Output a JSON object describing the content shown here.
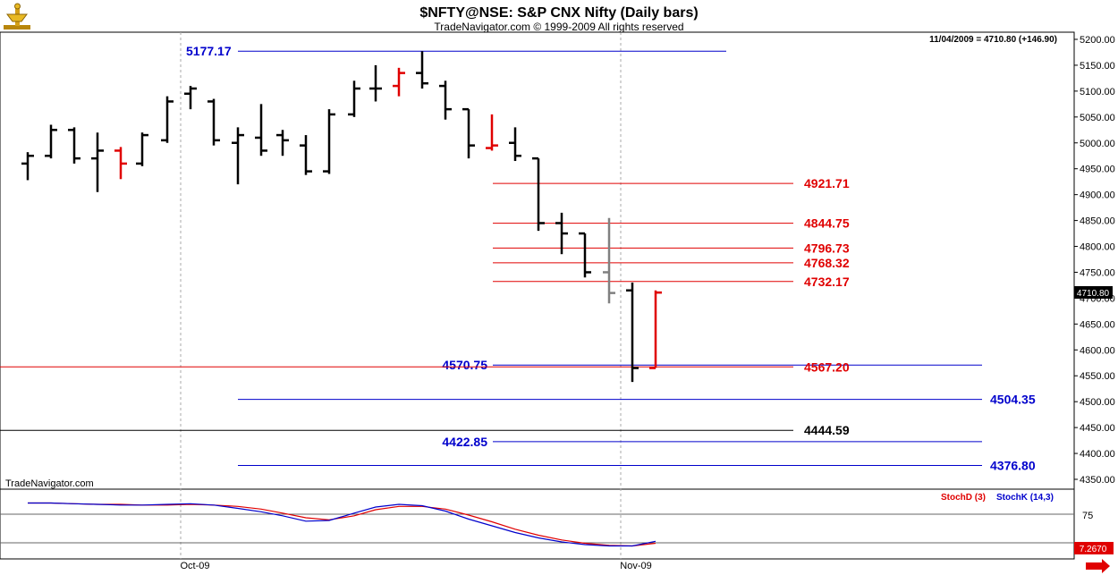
{
  "header": {
    "title": "$NFTY@NSE:  S&P CNX Nifty  (Daily bars)",
    "subtitle": "TradeNavigator.com © 1999-2009 All rights reserved",
    "last_bar_info": "11/04/2009 = 4710.80 (+146.90)",
    "watermark": "TradeNavigator.com",
    "logo_icon": "trophy-scale-icon"
  },
  "price_axis": {
    "ticks": [
      "5200.00",
      "5150.00",
      "5100.00",
      "5050.00",
      "5000.00",
      "4950.00",
      "4900.00",
      "4850.00",
      "4800.00",
      "4750.00",
      "4700.00",
      "4650.00",
      "4600.00",
      "4550.00",
      "4500.00",
      "4450.00",
      "4400.00",
      "4350.00"
    ],
    "last_price_label": "4710.80"
  },
  "time_axis": {
    "labels": [
      "Oct-09",
      "Nov-09"
    ]
  },
  "indicator": {
    "legend_d": "StochD (3)",
    "legend_k": "StochK (14,3)",
    "tick": "75",
    "value_label": "7.2670",
    "colors": {
      "d": "#e00000",
      "k": "#0000cc"
    }
  },
  "levels": [
    {
      "label": "5177.17",
      "value": 5177.17,
      "color": "#0000cc"
    },
    {
      "label": "4921.71",
      "value": 4921.71,
      "color": "#e00000"
    },
    {
      "label": "4844.75",
      "value": 4844.75,
      "color": "#e00000"
    },
    {
      "label": "4796.73",
      "value": 4796.73,
      "color": "#e00000"
    },
    {
      "label": "4768.32",
      "value": 4768.32,
      "color": "#e00000"
    },
    {
      "label": "4732.17",
      "value": 4732.17,
      "color": "#e00000"
    },
    {
      "label": "4570.75",
      "value": 4570.75,
      "color": "#0000cc"
    },
    {
      "label": "4567.20",
      "value": 4567.2,
      "color": "#e00000"
    },
    {
      "label": "4504.35",
      "value": 4504.35,
      "color": "#0000cc"
    },
    {
      "label": "4444.59",
      "value": 4444.59,
      "color": "#000000"
    },
    {
      "label": "4422.85",
      "value": 4422.85,
      "color": "#0000cc"
    },
    {
      "label": "4376.80",
      "value": 4376.8,
      "color": "#0000cc"
    }
  ],
  "chart_data": {
    "type": "ohlc",
    "title": "$NFTY@NSE:  S&P CNX Nifty  (Daily bars)",
    "ylim": [
      4325,
      5215
    ],
    "bar_colors": {
      "normal": "#000000",
      "red": "#e00000",
      "gray": "#808080"
    },
    "bars": [
      {
        "o": 4960,
        "h": 4982,
        "l": 4928,
        "c": 4975,
        "color": "normal"
      },
      {
        "o": 4975,
        "h": 5035,
        "l": 4970,
        "c": 5025,
        "color": "normal"
      },
      {
        "o": 5025,
        "h": 5030,
        "l": 4960,
        "c": 4970,
        "color": "normal"
      },
      {
        "o": 4970,
        "h": 5020,
        "l": 4905,
        "c": 4985,
        "color": "normal"
      },
      {
        "o": 4985,
        "h": 4992,
        "l": 4930,
        "c": 4960,
        "color": "red"
      },
      {
        "o": 4960,
        "h": 5020,
        "l": 4955,
        "c": 5015,
        "color": "normal"
      },
      {
        "o": 5005,
        "h": 5090,
        "l": 5000,
        "c": 5080,
        "color": "normal"
      },
      {
        "o": 5095,
        "h": 5110,
        "l": 5065,
        "c": 5105,
        "color": "normal"
      },
      {
        "o": 5080,
        "h": 5085,
        "l": 4995,
        "c": 5005,
        "color": "normal"
      },
      {
        "o": 5000,
        "h": 5030,
        "l": 4920,
        "c": 5015,
        "color": "normal"
      },
      {
        "o": 5010,
        "h": 5075,
        "l": 4975,
        "c": 4985,
        "color": "normal"
      },
      {
        "o": 5015,
        "h": 5025,
        "l": 4975,
        "c": 5005,
        "color": "normal"
      },
      {
        "o": 4995,
        "h": 5015,
        "l": 4938,
        "c": 4945,
        "color": "normal"
      },
      {
        "o": 4945,
        "h": 5065,
        "l": 4940,
        "c": 5055,
        "color": "normal"
      },
      {
        "o": 5055,
        "h": 5120,
        "l": 5050,
        "c": 5105,
        "color": "normal"
      },
      {
        "o": 5105,
        "h": 5150,
        "l": 5080,
        "c": 5105,
        "color": "normal"
      },
      {
        "o": 5110,
        "h": 5145,
        "l": 5090,
        "c": 5135,
        "color": "red"
      },
      {
        "o": 5135,
        "h": 5177,
        "l": 5105,
        "c": 5115,
        "color": "normal"
      },
      {
        "o": 5110,
        "h": 5120,
        "l": 5045,
        "c": 5065,
        "color": "normal"
      },
      {
        "o": 5065,
        "h": 5065,
        "l": 4970,
        "c": 4995,
        "color": "normal"
      },
      {
        "o": 4990,
        "h": 5055,
        "l": 4985,
        "c": 4995,
        "color": "red"
      },
      {
        "o": 5000,
        "h": 5030,
        "l": 4965,
        "c": 4975,
        "color": "normal"
      },
      {
        "o": 4970,
        "h": 4970,
        "l": 4830,
        "c": 4845,
        "color": "normal"
      },
      {
        "o": 4845,
        "h": 4865,
        "l": 4785,
        "c": 4825,
        "color": "normal"
      },
      {
        "o": 4825,
        "h": 4825,
        "l": 4740,
        "c": 4750,
        "color": "normal"
      },
      {
        "o": 4750,
        "h": 4855,
        "l": 4690,
        "c": 4710,
        "color": "gray"
      },
      {
        "o": 4715,
        "h": 4730,
        "l": 4538,
        "c": 4565,
        "color": "normal"
      },
      {
        "o": 4565,
        "h": 4715,
        "l": 4565,
        "c": 4710.8,
        "color": "red"
      }
    ],
    "stoch_k": [
      82,
      82,
      81,
      80,
      79,
      79,
      80,
      81,
      79,
      74,
      69,
      63,
      55,
      56,
      67,
      76,
      80,
      78,
      70,
      58,
      48,
      38,
      30,
      24,
      20,
      18,
      18,
      25
    ],
    "stoch_d": [
      82,
      82,
      81,
      80,
      80,
      79,
      79,
      80,
      79,
      77,
      73,
      67,
      60,
      57,
      63,
      72,
      77,
      77,
      73,
      64,
      54,
      43,
      34,
      27,
      22,
      19,
      18,
      22
    ],
    "stoch_ylim": [
      0,
      100
    ]
  }
}
